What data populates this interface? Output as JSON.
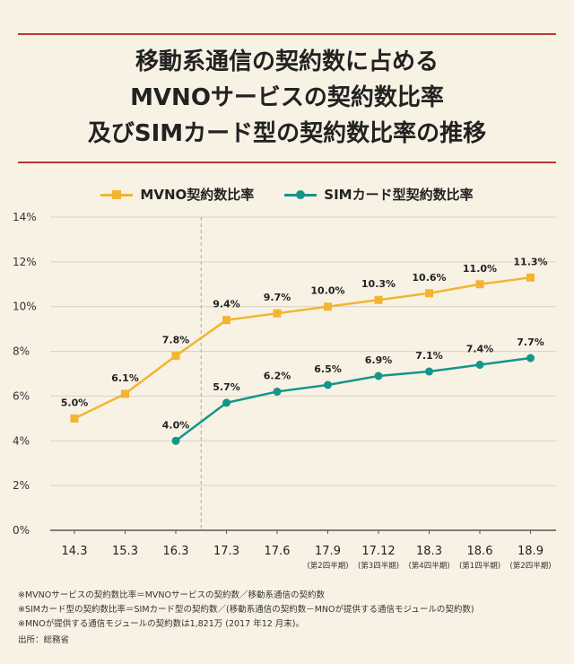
{
  "title_lines": [
    "移動系通信の契約数に占める",
    "MVNOサービスの契約数比率",
    "及びSIMカード型の契約数比率の推移"
  ],
  "colors": {
    "rule": "#b83a2e",
    "mvno": "#f2b531",
    "sim": "#15958b",
    "grid": "#d9d2c3",
    "axis": "#555555"
  },
  "chart_data": {
    "type": "line",
    "categories": [
      "14.3",
      "15.3",
      "16.3",
      "17.3",
      "17.6",
      "17.9",
      "17.12",
      "18.3",
      "18.6",
      "18.9"
    ],
    "category_sublabels": [
      "",
      "",
      "",
      "",
      "",
      "(第2四半期)",
      "(第3四半期)",
      "(第4四半期)",
      "(第1四半期)",
      "(第2四半期)"
    ],
    "yticks": [
      "0%",
      "2%",
      "4%",
      "6%",
      "8%",
      "10%",
      "12%",
      "14%"
    ],
    "ylim": [
      0,
      14
    ],
    "grid": true,
    "divider_between": [
      "16.3",
      "17.3"
    ],
    "legend_position": "top-center",
    "series": [
      {
        "name": "MVNO契約数比率",
        "marker": "square",
        "color": "#f2b531",
        "values": [
          5.0,
          6.1,
          7.8,
          9.4,
          9.7,
          10.0,
          10.3,
          10.6,
          11.0,
          11.3
        ],
        "labels": [
          "5.0%",
          "6.1%",
          "7.8%",
          "9.4%",
          "9.7%",
          "10.0%",
          "10.3%",
          "10.6%",
          "11.0%",
          "11.3%"
        ]
      },
      {
        "name": "SIMカード型契約数比率",
        "marker": "circle",
        "color": "#15958b",
        "values": [
          null,
          null,
          4.0,
          5.7,
          6.2,
          6.5,
          6.9,
          7.1,
          7.4,
          7.7
        ],
        "labels": [
          "",
          "",
          "4.0%",
          "5.7%",
          "6.2%",
          "6.5%",
          "6.9%",
          "7.1%",
          "7.4%",
          "7.7%"
        ]
      }
    ]
  },
  "notes": [
    "※MVNOサービスの契約数比率＝MVNOサービスの契約数／移動系通信の契約数",
    "※SIMカード型の契約数比率＝SIMカード型の契約数／(移動系通信の契約数－MNOが提供する通信モジュールの契約数)",
    "※MNOが提供する通信モジュールの契約数は1,821万 (2017 年12 月末)。",
    "出所：総務省"
  ]
}
